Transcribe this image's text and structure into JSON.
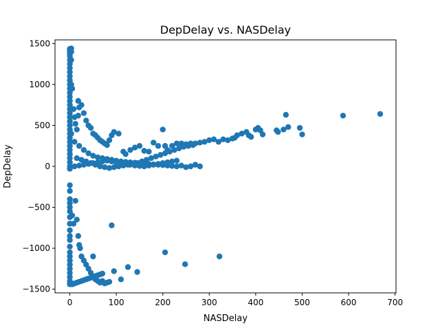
{
  "chart_data": {
    "type": "scatter",
    "title": "DepDelay vs. NASDelay",
    "xlabel": "NASDelay",
    "ylabel": "DepDelay",
    "xlim": [
      -32,
      702
    ],
    "ylim": [
      -1545,
      1545
    ],
    "xticks": [
      0,
      100,
      200,
      300,
      400,
      500,
      600,
      700
    ],
    "yticks": [
      -1500,
      -1000,
      -500,
      0,
      500,
      1000,
      1500
    ],
    "grid": false,
    "legend": "none",
    "marker_color": "#1f77b4",
    "series": [
      {
        "points": [
          [
            0,
            1435
          ],
          [
            0,
            1425
          ],
          [
            0,
            1410
          ],
          [
            0,
            1395
          ],
          [
            0,
            1380
          ],
          [
            0,
            1350
          ],
          [
            0,
            1300
          ],
          [
            0,
            1250
          ],
          [
            0,
            1200
          ],
          [
            0,
            1150
          ],
          [
            0,
            1100
          ],
          [
            0,
            1050
          ],
          [
            0,
            1000
          ],
          [
            0,
            950
          ],
          [
            0,
            900
          ],
          [
            0,
            850
          ],
          [
            0,
            800
          ],
          [
            0,
            750
          ],
          [
            0,
            700
          ],
          [
            0,
            650
          ],
          [
            0,
            600
          ],
          [
            0,
            550
          ],
          [
            0,
            500
          ],
          [
            0,
            450
          ],
          [
            0,
            400
          ],
          [
            0,
            350
          ],
          [
            0,
            300
          ],
          [
            0,
            250
          ],
          [
            0,
            200
          ],
          [
            0,
            150
          ],
          [
            0,
            100
          ],
          [
            0,
            50
          ],
          [
            0,
            0
          ],
          [
            0,
            -30
          ],
          [
            3,
            1440
          ],
          [
            3,
            1400
          ],
          [
            3,
            1300
          ],
          [
            3,
            1000
          ],
          [
            3,
            700
          ],
          [
            3,
            400
          ],
          [
            5,
            950
          ],
          [
            8,
            700
          ],
          [
            10,
            600
          ],
          [
            12,
            520
          ],
          [
            15,
            450
          ],
          [
            18,
            620
          ],
          [
            18,
            800
          ],
          [
            20,
            720
          ],
          [
            25,
            750
          ],
          [
            30,
            650
          ],
          [
            35,
            560
          ],
          [
            40,
            500
          ],
          [
            45,
            470
          ],
          [
            50,
            400
          ],
          [
            55,
            380
          ],
          [
            60,
            350
          ],
          [
            65,
            320
          ],
          [
            70,
            300
          ],
          [
            75,
            280
          ],
          [
            80,
            260
          ],
          [
            85,
            320
          ],
          [
            90,
            380
          ],
          [
            95,
            420
          ],
          [
            105,
            400
          ],
          [
            115,
            180
          ],
          [
            120,
            150
          ],
          [
            130,
            200
          ],
          [
            140,
            230
          ],
          [
            150,
            250
          ],
          [
            160,
            190
          ],
          [
            170,
            180
          ],
          [
            180,
            290
          ],
          [
            190,
            250
          ],
          [
            200,
            450
          ],
          [
            205,
            250
          ],
          [
            210,
            200
          ],
          [
            220,
            250
          ],
          [
            230,
            280
          ],
          [
            240,
            280
          ],
          [
            250,
            270
          ],
          [
            260,
            280
          ],
          [
            270,
            280
          ],
          [
            280,
            290
          ],
          [
            290,
            300
          ],
          [
            300,
            320
          ],
          [
            310,
            330
          ],
          [
            320,
            300
          ],
          [
            330,
            330
          ],
          [
            340,
            320
          ],
          [
            350,
            340
          ],
          [
            355,
            350
          ],
          [
            360,
            380
          ],
          [
            370,
            400
          ],
          [
            380,
            420
          ],
          [
            385,
            380
          ],
          [
            390,
            360
          ],
          [
            400,
            450
          ],
          [
            405,
            470
          ],
          [
            410,
            440
          ],
          [
            415,
            390
          ],
          [
            445,
            440
          ],
          [
            448,
            420
          ],
          [
            460,
            450
          ],
          [
            465,
            630
          ],
          [
            470,
            480
          ],
          [
            495,
            470
          ],
          [
            500,
            390
          ],
          [
            588,
            620
          ],
          [
            668,
            640
          ],
          [
            10,
            300
          ],
          [
            20,
            250
          ],
          [
            30,
            200
          ],
          [
            40,
            160
          ],
          [
            50,
            130
          ],
          [
            60,
            110
          ],
          [
            70,
            100
          ],
          [
            80,
            90
          ],
          [
            90,
            80
          ],
          [
            100,
            70
          ],
          [
            110,
            60
          ],
          [
            120,
            55
          ],
          [
            130,
            50
          ],
          [
            140,
            45
          ],
          [
            150,
            40
          ],
          [
            160,
            35
          ],
          [
            170,
            30
          ],
          [
            180,
            25
          ],
          [
            190,
            20
          ],
          [
            200,
            15
          ],
          [
            210,
            10
          ],
          [
            220,
            5
          ],
          [
            230,
            0
          ],
          [
            240,
            10
          ],
          [
            250,
            -10
          ],
          [
            260,
            0
          ],
          [
            270,
            20
          ],
          [
            280,
            0
          ],
          [
            10,
            0
          ],
          [
            20,
            10
          ],
          [
            30,
            20
          ],
          [
            40,
            30
          ],
          [
            50,
            40
          ],
          [
            60,
            50
          ],
          [
            70,
            60
          ],
          [
            80,
            70
          ],
          [
            90,
            60
          ],
          [
            100,
            50
          ],
          [
            110,
            40
          ],
          [
            120,
            30
          ],
          [
            130,
            20
          ],
          [
            140,
            10
          ],
          [
            150,
            5
          ],
          [
            160,
            0
          ],
          [
            170,
            10
          ],
          [
            180,
            20
          ],
          [
            190,
            30
          ],
          [
            200,
            40
          ],
          [
            210,
            50
          ],
          [
            220,
            60
          ],
          [
            230,
            70
          ],
          [
            15,
            100
          ],
          [
            25,
            80
          ],
          [
            35,
            60
          ],
          [
            45,
            40
          ],
          [
            55,
            20
          ],
          [
            65,
            0
          ],
          [
            75,
            -10
          ],
          [
            85,
            -20
          ],
          [
            95,
            -10
          ],
          [
            105,
            0
          ],
          [
            115,
            10
          ],
          [
            125,
            20
          ],
          [
            135,
            30
          ],
          [
            145,
            40
          ],
          [
            155,
            60
          ],
          [
            165,
            80
          ],
          [
            175,
            100
          ],
          [
            185,
            120
          ],
          [
            195,
            140
          ],
          [
            205,
            160
          ],
          [
            215,
            180
          ],
          [
            225,
            200
          ],
          [
            235,
            220
          ],
          [
            245,
            240
          ],
          [
            255,
            250
          ],
          [
            265,
            260
          ],
          [
            0,
            -230
          ],
          [
            0,
            -300
          ],
          [
            0,
            -400
          ],
          [
            0,
            -450
          ],
          [
            0,
            -500
          ],
          [
            0,
            -550
          ],
          [
            0,
            -620
          ],
          [
            0,
            -700
          ],
          [
            0,
            -780
          ],
          [
            0,
            -850
          ],
          [
            0,
            -900
          ],
          [
            0,
            -980
          ],
          [
            0,
            -1050
          ],
          [
            0,
            -1100
          ],
          [
            0,
            -1150
          ],
          [
            0,
            -1200
          ],
          [
            0,
            -1250
          ],
          [
            0,
            -1300
          ],
          [
            0,
            -1350
          ],
          [
            0,
            -1400
          ],
          [
            0,
            -1430
          ],
          [
            0,
            -1440
          ],
          [
            5,
            -600
          ],
          [
            8,
            -700
          ],
          [
            12,
            -420
          ],
          [
            15,
            -650
          ],
          [
            18,
            -850
          ],
          [
            20,
            -960
          ],
          [
            22,
            -1000
          ],
          [
            25,
            -1100
          ],
          [
            30,
            -1150
          ],
          [
            35,
            -1200
          ],
          [
            40,
            -1250
          ],
          [
            45,
            -1300
          ],
          [
            50,
            -1350
          ],
          [
            55,
            -1380
          ],
          [
            60,
            -1400
          ],
          [
            65,
            -1420
          ],
          [
            70,
            -1400
          ],
          [
            75,
            -1430
          ],
          [
            80,
            -1420
          ],
          [
            85,
            -1410
          ],
          [
            5,
            -1440
          ],
          [
            10,
            -1430
          ],
          [
            15,
            -1420
          ],
          [
            20,
            -1410
          ],
          [
            25,
            -1400
          ],
          [
            30,
            -1390
          ],
          [
            35,
            -1380
          ],
          [
            40,
            -1370
          ],
          [
            45,
            -1360
          ],
          [
            50,
            -1350
          ],
          [
            55,
            -1340
          ],
          [
            60,
            -1330
          ],
          [
            65,
            -1320
          ],
          [
            70,
            -1310
          ],
          [
            50,
            -1100
          ],
          [
            90,
            -720
          ],
          [
            95,
            -1280
          ],
          [
            110,
            -1380
          ],
          [
            125,
            -1230
          ],
          [
            145,
            -1290
          ],
          [
            205,
            -1050
          ],
          [
            248,
            -1195
          ],
          [
            322,
            -1100
          ]
        ]
      }
    ]
  }
}
